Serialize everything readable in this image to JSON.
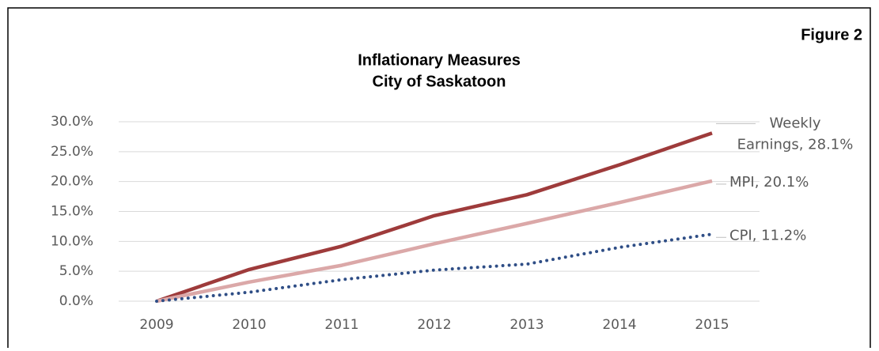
{
  "chart_data": {
    "type": "line",
    "figure_label": "Figure 2",
    "title": [
      "Inflationary Measures",
      "City of Saskatoon"
    ],
    "categories": [
      "2009",
      "2010",
      "2011",
      "2012",
      "2013",
      "2014",
      "2015"
    ],
    "series": [
      {
        "name": "Weekly Earnings",
        "color": "#9e3b3b",
        "style": "solid",
        "values": [
          0,
          5.3,
          9.2,
          14.3,
          17.8,
          22.8,
          28.1
        ],
        "label_lines": [
          "Weekly",
          "Earnings, 28.1%"
        ]
      },
      {
        "name": "MPI",
        "color": "#dba8a8",
        "style": "solid",
        "values": [
          0,
          3.2,
          6.0,
          9.6,
          13.0,
          16.5,
          20.1
        ],
        "label_lines": [
          "MPI, 20.1%"
        ]
      },
      {
        "name": "CPI",
        "color": "#2f4e86",
        "style": "dotted",
        "values": [
          0,
          1.5,
          3.6,
          5.2,
          6.2,
          9.0,
          11.2
        ],
        "label_lines": [
          "CPI, 11.2%"
        ]
      }
    ],
    "ylim": [
      0,
      30
    ],
    "yticks": [
      {
        "value": 0,
        "label": "0.0%"
      },
      {
        "value": 5,
        "label": "5.0%"
      },
      {
        "value": 10,
        "label": "10.0%"
      },
      {
        "value": 15,
        "label": "15.0%"
      },
      {
        "value": 20,
        "label": "20.0%"
      },
      {
        "value": 25,
        "label": "25.0%"
      },
      {
        "value": 30,
        "label": "30.0%"
      }
    ],
    "grid": true
  }
}
